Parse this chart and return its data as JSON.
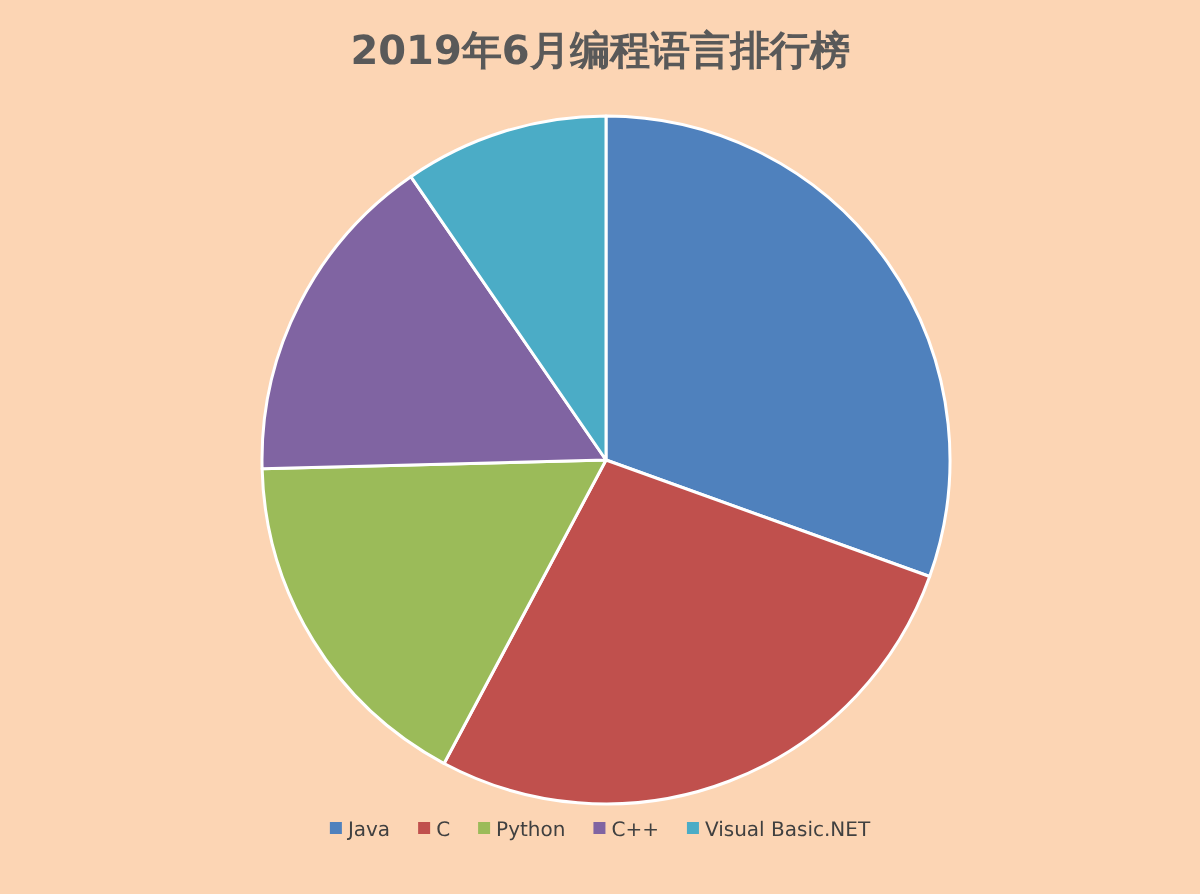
{
  "chart_data": {
    "type": "pie",
    "title": "2019年6月编程语言排行榜",
    "categories": [
      "Java",
      "C",
      "Python",
      "C++",
      "Visual Basic.NET"
    ],
    "values": [
      30.5,
      27.3,
      16.8,
      15.8,
      9.6
    ],
    "colors": [
      "#4f81bd",
      "#c0504d",
      "#9bbb59",
      "#8064a2",
      "#4bacc6"
    ],
    "legend": "bottom"
  }
}
